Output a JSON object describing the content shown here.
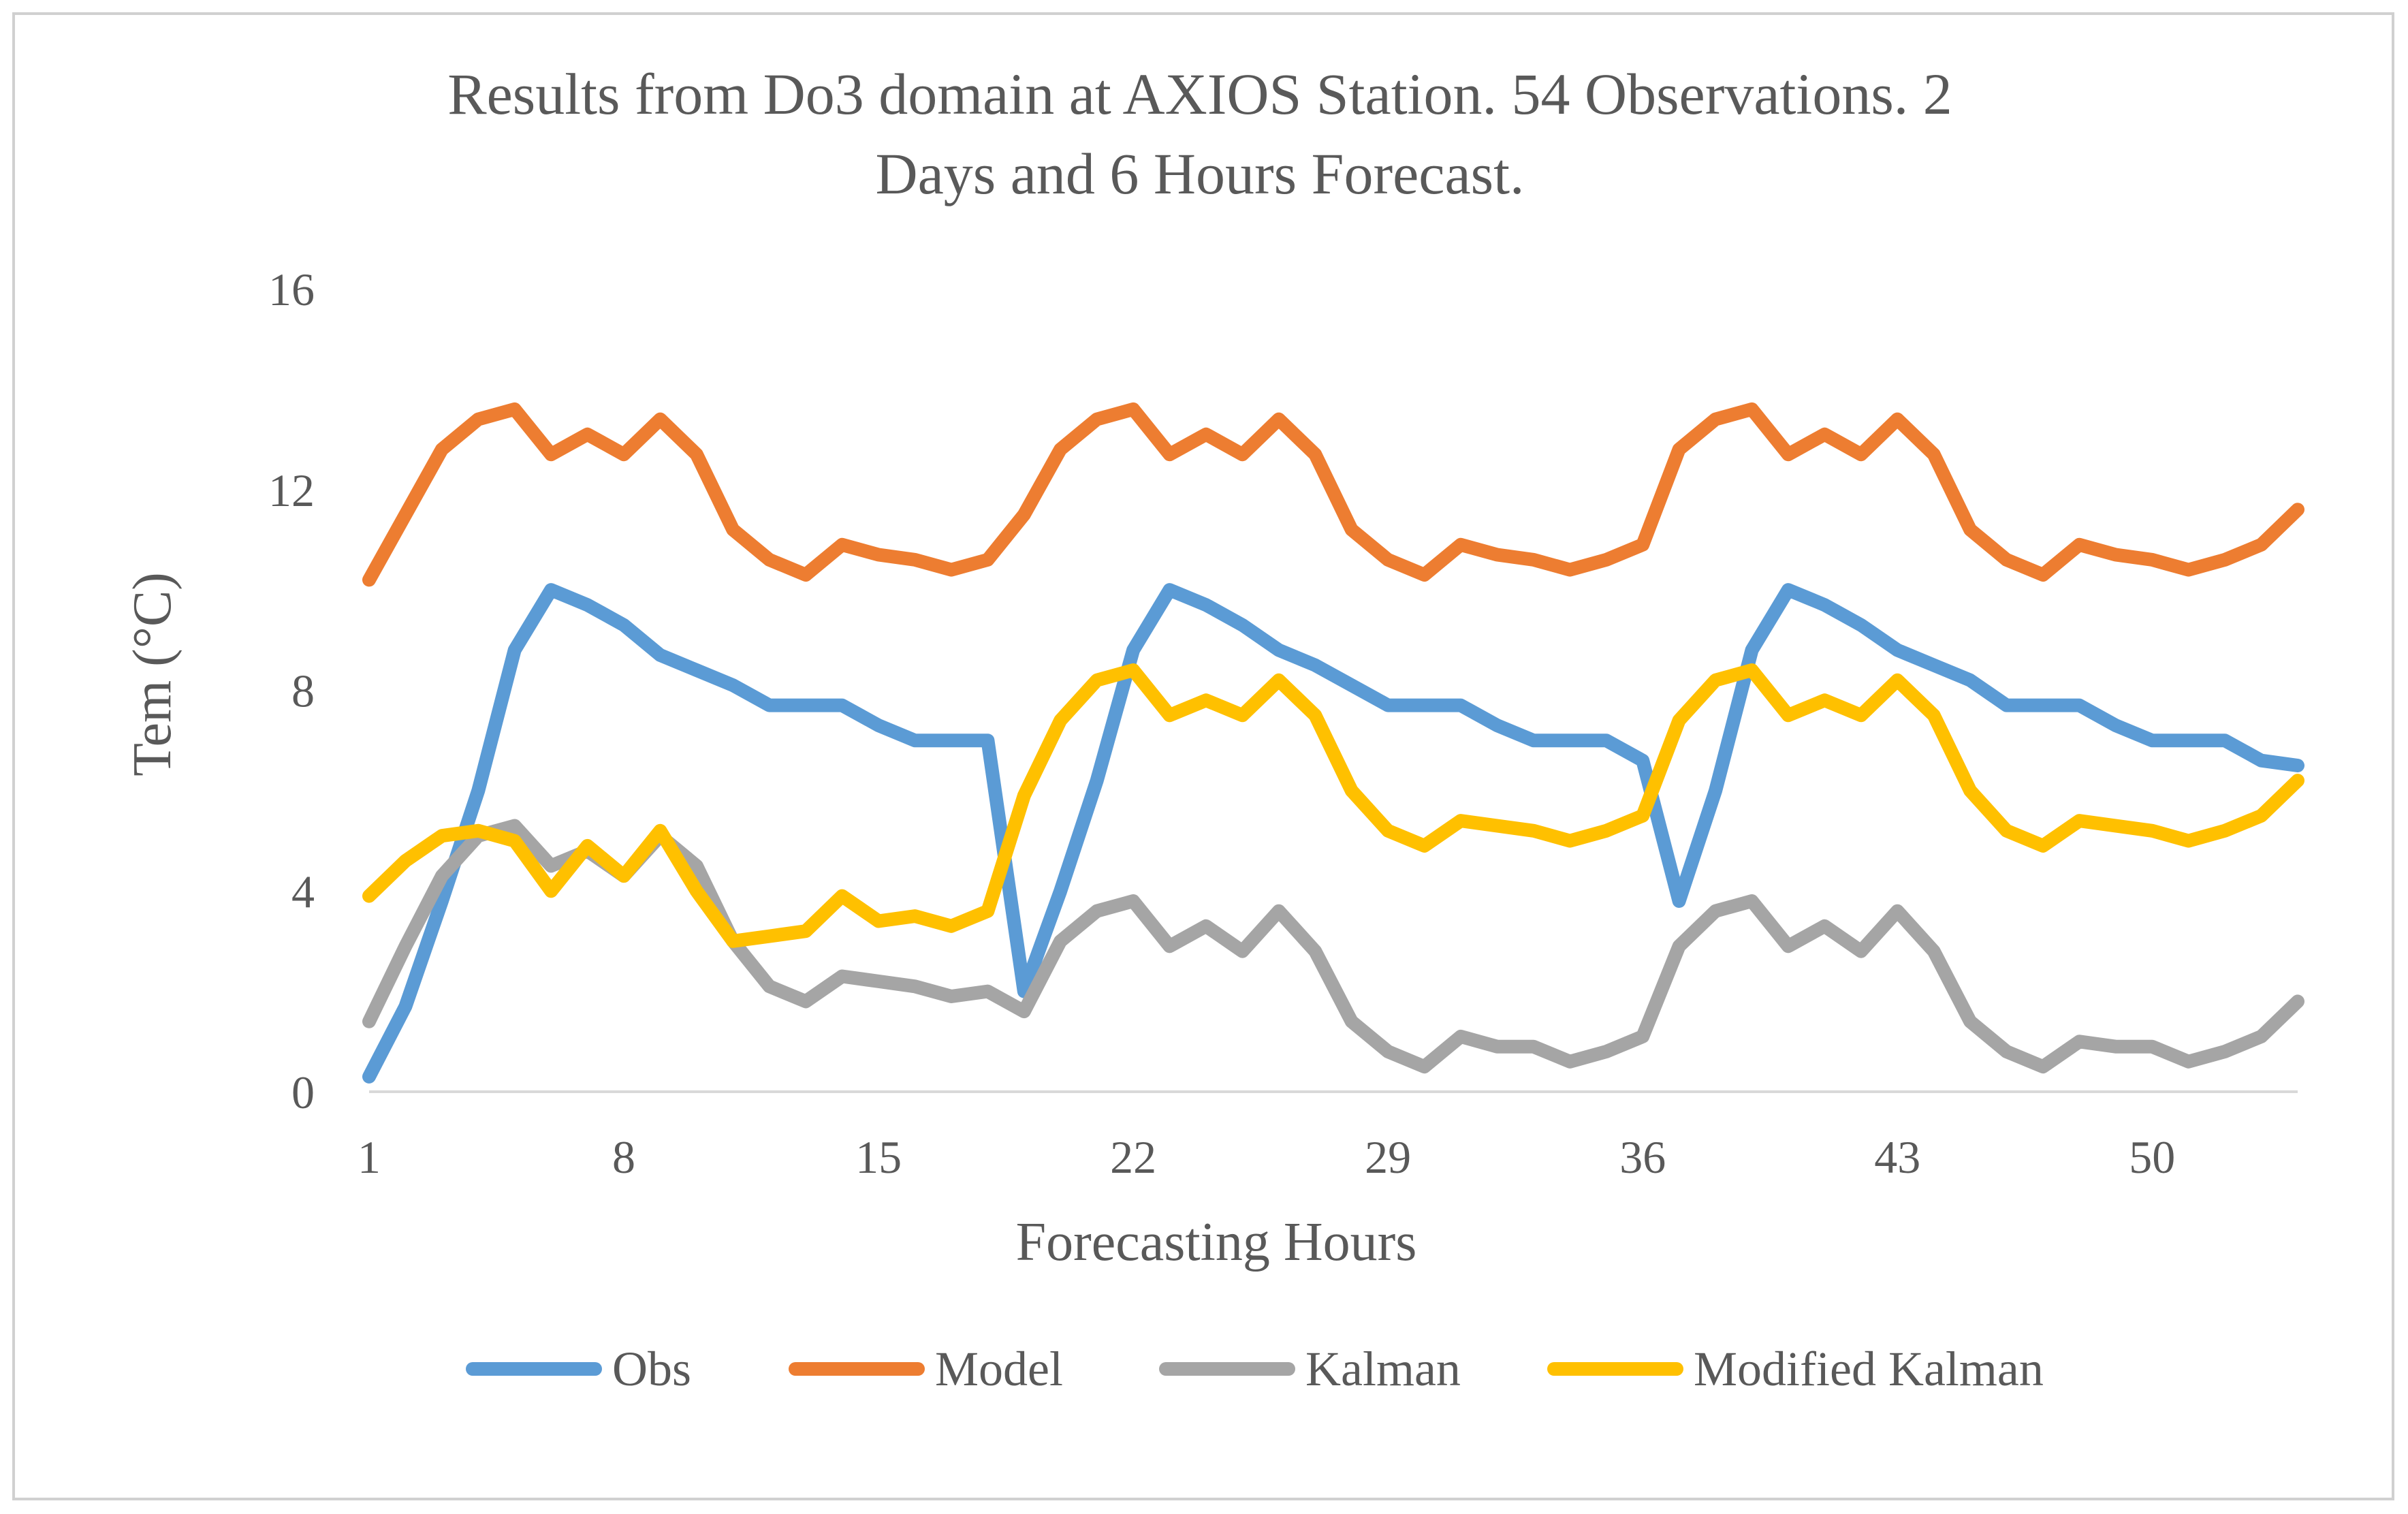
{
  "chart_data": {
    "type": "line",
    "title_lines": [
      "Results from Do3  domain at AXIOS Station. 54 Observations. 2",
      "Days and 6 Hours Forecast."
    ],
    "xlabel": "Forecasting Hours",
    "ylabel": "Tem (°C)",
    "ylim": [
      0,
      16
    ],
    "yticks": [
      0,
      4,
      8,
      12,
      16
    ],
    "xticks": [
      1,
      8,
      15,
      22,
      29,
      36,
      43,
      50
    ],
    "x_count": 54,
    "grid": "horizontal baseline only",
    "legend_position": "bottom",
    "series": [
      {
        "name": "Obs",
        "color": "#5b9bd5",
        "values": [
          0.3,
          1.7,
          3.8,
          6.0,
          8.8,
          10.0,
          9.7,
          9.3,
          8.7,
          8.4,
          8.1,
          7.7,
          7.7,
          7.7,
          7.3,
          7.0,
          7.0,
          7.0,
          2.0,
          4.0,
          6.2,
          8.8,
          10.0,
          9.7,
          9.3,
          8.8,
          8.5,
          8.1,
          7.7,
          7.7,
          7.7,
          7.3,
          7.0,
          7.0,
          7.0,
          6.6,
          3.8,
          6.0,
          8.8,
          10.0,
          9.7,
          9.3,
          8.8,
          8.5,
          8.2,
          7.7,
          7.7,
          7.7,
          7.3,
          7.0,
          7.0,
          7.0,
          6.6,
          6.5
        ]
      },
      {
        "name": "Model",
        "color": "#ed7d31",
        "values": [
          10.2,
          11.5,
          12.8,
          13.4,
          13.6,
          12.7,
          13.1,
          12.7,
          13.4,
          12.7,
          11.2,
          10.6,
          10.3,
          10.9,
          10.7,
          10.6,
          10.4,
          10.6,
          11.5,
          12.8,
          13.4,
          13.6,
          12.7,
          13.1,
          12.7,
          13.4,
          12.7,
          11.2,
          10.6,
          10.3,
          10.9,
          10.7,
          10.6,
          10.4,
          10.6,
          10.9,
          12.8,
          13.4,
          13.6,
          12.7,
          13.1,
          12.7,
          13.4,
          12.7,
          11.2,
          10.6,
          10.3,
          10.9,
          10.7,
          10.6,
          10.4,
          10.6,
          10.9,
          11.6
        ]
      },
      {
        "name": "Kalman",
        "color": "#a5a5a5",
        "values": [
          1.4,
          2.9,
          4.3,
          5.1,
          5.3,
          4.5,
          4.8,
          4.3,
          5.1,
          4.5,
          3.0,
          2.1,
          1.8,
          2.3,
          2.2,
          2.1,
          1.9,
          2.0,
          1.6,
          3.0,
          3.6,
          3.8,
          2.9,
          3.3,
          2.8,
          3.6,
          2.8,
          1.4,
          0.8,
          0.5,
          1.1,
          0.9,
          0.9,
          0.6,
          0.8,
          1.1,
          2.9,
          3.6,
          3.8,
          2.9,
          3.3,
          2.8,
          3.6,
          2.8,
          1.4,
          0.8,
          0.5,
          1.0,
          0.9,
          0.9,
          0.6,
          0.8,
          1.1,
          1.8
        ]
      },
      {
        "name": "Modified Kalman",
        "color": "#ffc000",
        "values": [
          3.9,
          4.6,
          5.1,
          5.2,
          5.0,
          4.0,
          4.9,
          4.3,
          5.2,
          4.0,
          3.0,
          3.1,
          3.2,
          3.9,
          3.4,
          3.5,
          3.3,
          3.6,
          5.9,
          7.4,
          8.2,
          8.4,
          7.5,
          7.8,
          7.5,
          8.2,
          7.5,
          6.0,
          5.2,
          4.9,
          5.4,
          5.3,
          5.2,
          5.0,
          5.2,
          5.5,
          7.4,
          8.2,
          8.4,
          7.5,
          7.8,
          7.5,
          8.2,
          7.5,
          6.0,
          5.2,
          4.9,
          5.4,
          5.3,
          5.2,
          5.0,
          5.2,
          5.5,
          6.2
        ]
      }
    ]
  }
}
